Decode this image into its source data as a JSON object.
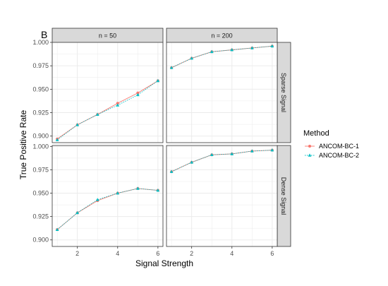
{
  "figure": {
    "panel_tag": "B",
    "xlabel": "Signal Strength",
    "ylabel": "True Positive Rate",
    "legend_title": "Method"
  },
  "colors": {
    "grid": "#ebebeb",
    "strip_bg": "#d9d9d9",
    "border": "#333333"
  },
  "chart_data": {
    "type": "line",
    "x_ticks": [
      2,
      4,
      6
    ],
    "xlim": [
      0.75,
      6.25
    ],
    "columns": [
      "n = 50",
      "n = 200"
    ],
    "rows": [
      "Sparse Signal",
      "Dense Signal"
    ],
    "series": [
      {
        "name": "ANCOM-BC-1",
        "color": "#f8766d",
        "marker": "circle",
        "line": "solid"
      },
      {
        "name": "ANCOM-BC-2",
        "color": "#00bfc4",
        "marker": "triangle",
        "line": "dotted"
      }
    ],
    "panels": [
      {
        "row": 0,
        "col": 0,
        "ylim": [
          0.893,
          1.0
        ],
        "y_ticks": [
          "1.000",
          "0.975",
          "0.950",
          "0.925",
          "0.900"
        ],
        "y_tick_values": [
          1.0,
          0.975,
          0.95,
          0.925,
          0.9
        ],
        "x": [
          1,
          2,
          3,
          4,
          5,
          6
        ],
        "values": [
          [
            0.897,
            0.912,
            0.923,
            0.935,
            0.946,
            0.959
          ],
          [
            0.896,
            0.912,
            0.923,
            0.933,
            0.944,
            0.959
          ]
        ]
      },
      {
        "row": 0,
        "col": 1,
        "ylim": [
          0.893,
          1.0
        ],
        "x": [
          1,
          2,
          3,
          4,
          5,
          6
        ],
        "values": [
          [
            0.973,
            0.983,
            0.99,
            0.992,
            0.994,
            0.996
          ],
          [
            0.973,
            0.983,
            0.99,
            0.992,
            0.994,
            0.996
          ]
        ]
      },
      {
        "row": 1,
        "col": 0,
        "ylim": [
          0.893,
          1.001
        ],
        "y_ticks": [
          "1.000",
          "0.975",
          "0.950",
          "0.925",
          "0.900"
        ],
        "y_tick_values": [
          1.0,
          0.975,
          0.95,
          0.925,
          0.9
        ],
        "x": [
          1,
          2,
          3,
          4,
          5,
          6
        ],
        "values": [
          [
            0.911,
            0.929,
            0.942,
            0.95,
            0.955,
            0.953
          ],
          [
            0.911,
            0.929,
            0.943,
            0.95,
            0.955,
            0.953
          ]
        ]
      },
      {
        "row": 1,
        "col": 1,
        "ylim": [
          0.893,
          1.001
        ],
        "x": [
          1,
          2,
          3,
          4,
          5,
          6
        ],
        "values": [
          [
            0.973,
            0.983,
            0.991,
            0.992,
            0.995,
            0.996
          ],
          [
            0.973,
            0.983,
            0.991,
            0.992,
            0.995,
            0.996
          ]
        ]
      }
    ]
  }
}
